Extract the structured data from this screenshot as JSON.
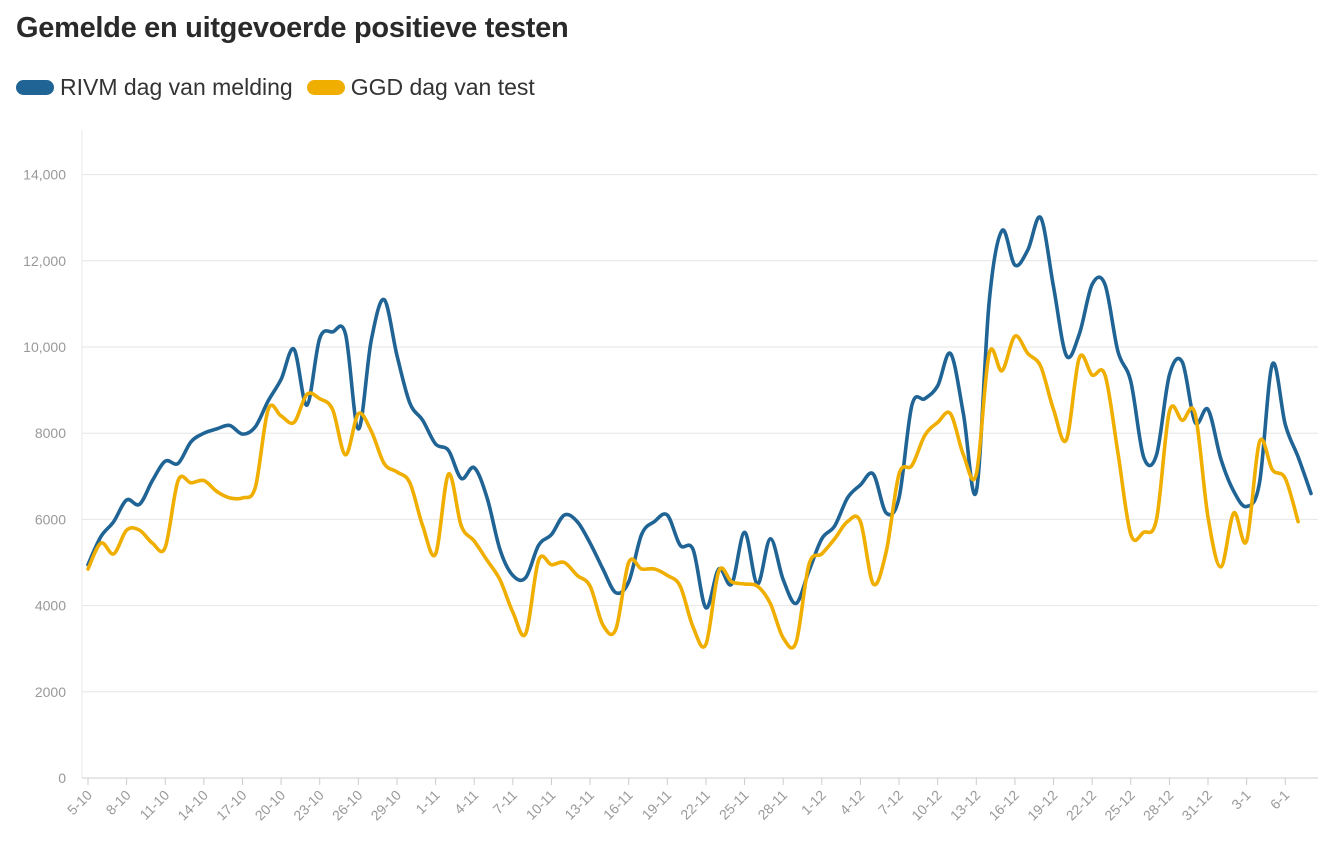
{
  "chart_data": {
    "type": "line",
    "title": "Gemelde en uitgevoerde positieve testen",
    "xlabel": "",
    "ylabel": "",
    "ylim": [
      0,
      15000
    ],
    "yticks": [
      0,
      2000,
      4000,
      6000,
      8000,
      10000,
      12000,
      14000
    ],
    "ytick_labels": [
      "0",
      "2000",
      "4000",
      "6000",
      "8000",
      "10,000",
      "12,000",
      "14,000"
    ],
    "legend_position": "top-left",
    "grid": true,
    "x_labels": [
      "5-10",
      "8-10",
      "11-10",
      "14-10",
      "17-10",
      "20-10",
      "23-10",
      "26-10",
      "29-10",
      "1-11",
      "4-11",
      "7-11",
      "10-11",
      "13-11",
      "16-11",
      "19-11",
      "22-11",
      "25-11",
      "28-11",
      "1-12",
      "4-12",
      "7-12",
      "10-12",
      "13-12",
      "16-12",
      "19-12",
      "22-12",
      "25-12",
      "28-12",
      "31-12",
      "3-1",
      "6-1"
    ],
    "series": [
      {
        "name": "RIVM dag van melding",
        "color": "#1f6495",
        "values": [
          4950,
          5600,
          5950,
          6450,
          6350,
          6900,
          7350,
          7300,
          7800,
          8000,
          8100,
          8180,
          7980,
          8150,
          8750,
          9250,
          9950,
          8650,
          10200,
          10350,
          10300,
          8100,
          10150,
          11100,
          9800,
          8700,
          8300,
          7750,
          7600,
          6950,
          7200,
          6500,
          5300,
          4700,
          4650,
          5400,
          5650,
          6100,
          5950,
          5450,
          4850,
          4300,
          4550,
          5650,
          5950,
          6100,
          5400,
          5300,
          3950,
          4850,
          4500,
          5700,
          4500,
          5550,
          4600,
          4050,
          4800,
          5550,
          5850,
          6500,
          6800,
          7050,
          6150,
          6500,
          8650,
          8800,
          9100,
          9850,
          8450,
          6650,
          11050,
          12700,
          11900,
          12250,
          13000,
          11400,
          9800,
          10300,
          11450,
          11450,
          9900,
          9200,
          7450,
          7500,
          9350,
          9650,
          8250,
          8550,
          7400,
          6650,
          6300,
          6850,
          9600,
          8200,
          7450,
          6600
        ]
      },
      {
        "name": "GGD dag van test",
        "color": "#efae00",
        "values": [
          4850,
          5450,
          5200,
          5750,
          5750,
          5450,
          5350,
          6900,
          6850,
          6900,
          6650,
          6500,
          6500,
          6750,
          8550,
          8400,
          8250,
          8900,
          8800,
          8550,
          7500,
          8450,
          8050,
          7300,
          7100,
          6850,
          5850,
          5200,
          7050,
          5850,
          5500,
          5050,
          4600,
          3850,
          3350,
          5050,
          4950,
          5000,
          4700,
          4450,
          3550,
          3450,
          5000,
          4850,
          4850,
          4700,
          4450,
          3500,
          3100,
          4800,
          4550,
          4500,
          4450,
          4050,
          3250,
          3150,
          4950,
          5200,
          5550,
          5950,
          5950,
          4500,
          5250,
          7050,
          7250,
          7950,
          8250,
          8450,
          7500,
          7050,
          9850,
          9450,
          10250,
          9850,
          9550,
          8550,
          7850,
          9750,
          9350,
          9350,
          7550,
          5650,
          5700,
          6000,
          8500,
          8300,
          8450,
          6050,
          4900,
          6150,
          5500,
          7800,
          7150,
          6950,
          5950
        ]
      }
    ]
  }
}
